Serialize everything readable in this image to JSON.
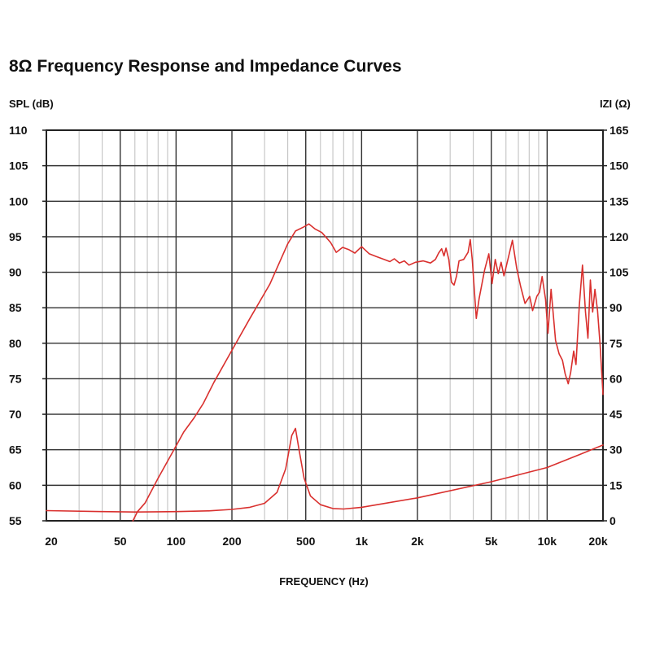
{
  "chart_data": {
    "type": "line",
    "title": "8Ω Frequency Response and Impedance Curves",
    "xlabel": "FREQUENCY (Hz)",
    "ylabel_left": "SPL (dB)",
    "ylabel_right": "IZI (Ω)",
    "xscale": "log",
    "xlim": [
      20,
      20000
    ],
    "ylim_left": [
      55,
      110
    ],
    "ylim_right": [
      0,
      165
    ],
    "grid": true,
    "x_ticks": [
      {
        "value": 20,
        "label": "20"
      },
      {
        "value": 50,
        "label": "50"
      },
      {
        "value": 100,
        "label": "100"
      },
      {
        "value": 200,
        "label": "200"
      },
      {
        "value": 500,
        "label": "500"
      },
      {
        "value": 1000,
        "label": "1k"
      },
      {
        "value": 2000,
        "label": "2k"
      },
      {
        "value": 5000,
        "label": "5k"
      },
      {
        "value": 10000,
        "label": "10k"
      },
      {
        "value": 20000,
        "label": "20k"
      }
    ],
    "y_ticks_left": [
      {
        "value": 110,
        "label": "110"
      },
      {
        "value": 105,
        "label": "105"
      },
      {
        "value": 100,
        "label": "100"
      },
      {
        "value": 95,
        "label": "95"
      },
      {
        "value": 90,
        "label": "90"
      },
      {
        "value": 85,
        "label": "85"
      },
      {
        "value": 80,
        "label": "80"
      },
      {
        "value": 75,
        "label": "75"
      },
      {
        "value": 70,
        "label": "70"
      },
      {
        "value": 65,
        "label": "65"
      },
      {
        "value": 60,
        "label": "60"
      },
      {
        "value": 55,
        "label": "55"
      }
    ],
    "y_ticks_right": [
      {
        "value": 165,
        "label": "165"
      },
      {
        "value": 150,
        "label": "150"
      },
      {
        "value": 135,
        "label": "135"
      },
      {
        "value": 120,
        "label": "120"
      },
      {
        "value": 105,
        "label": "105"
      },
      {
        "value": 90,
        "label": "90"
      },
      {
        "value": 75,
        "label": "75"
      },
      {
        "value": 60,
        "label": "60"
      },
      {
        "value": 45,
        "label": "45"
      },
      {
        "value": 30,
        "label": "30"
      },
      {
        "value": 15,
        "label": "15"
      },
      {
        "value": 0,
        "label": "0"
      }
    ],
    "series": [
      {
        "name": "SPL",
        "axis": "left",
        "color": "#d9302e",
        "points": [
          [
            58.5,
            55
          ],
          [
            62,
            56.3
          ],
          [
            68,
            57.5
          ],
          [
            80,
            61
          ],
          [
            95,
            64.5
          ],
          [
            110,
            67.5
          ],
          [
            125,
            69.5
          ],
          [
            140,
            71.5
          ],
          [
            160,
            74.5
          ],
          [
            200,
            79
          ],
          [
            250,
            83.5
          ],
          [
            320,
            88.3
          ],
          [
            400,
            94
          ],
          [
            440,
            95.8
          ],
          [
            490,
            96.4
          ],
          [
            520,
            96.8
          ],
          [
            560,
            96.1
          ],
          [
            610,
            95.6
          ],
          [
            680,
            94.2
          ],
          [
            730,
            92.8
          ],
          [
            790,
            93.5
          ],
          [
            850,
            93.2
          ],
          [
            920,
            92.7
          ],
          [
            1000,
            93.6
          ],
          [
            1100,
            92.6
          ],
          [
            1200,
            92.2
          ],
          [
            1320,
            91.8
          ],
          [
            1420,
            91.5
          ],
          [
            1500,
            91.9
          ],
          [
            1600,
            91.3
          ],
          [
            1700,
            91.6
          ],
          [
            1800,
            91.0
          ],
          [
            1950,
            91.4
          ],
          [
            2150,
            91.6
          ],
          [
            2350,
            91.3
          ],
          [
            2500,
            91.8
          ],
          [
            2600,
            92.7
          ],
          [
            2700,
            93.3
          ],
          [
            2780,
            92.3
          ],
          [
            2850,
            93.4
          ],
          [
            2950,
            91.8
          ],
          [
            3050,
            88.6
          ],
          [
            3150,
            88.2
          ],
          [
            3250,
            89.5
          ],
          [
            3350,
            91.6
          ],
          [
            3550,
            91.8
          ],
          [
            3750,
            92.8
          ],
          [
            3850,
            94.6
          ],
          [
            3950,
            91.7
          ],
          [
            4050,
            87.5
          ],
          [
            4150,
            83.5
          ],
          [
            4300,
            86.3
          ],
          [
            4600,
            90.3
          ],
          [
            4850,
            92.6
          ],
          [
            5050,
            88.4
          ],
          [
            5250,
            91.8
          ],
          [
            5450,
            89.8
          ],
          [
            5650,
            91.4
          ],
          [
            5850,
            89.5
          ],
          [
            6200,
            92.2
          ],
          [
            6500,
            94.5
          ],
          [
            6850,
            90.6
          ],
          [
            7200,
            88.0
          ],
          [
            7600,
            85.6
          ],
          [
            8050,
            86.6
          ],
          [
            8350,
            84.6
          ],
          [
            8800,
            86.6
          ],
          [
            9100,
            87.2
          ],
          [
            9400,
            89.4
          ],
          [
            9800,
            86.2
          ],
          [
            10100,
            81.4
          ],
          [
            10500,
            87.6
          ],
          [
            11100,
            80.4
          ],
          [
            11600,
            78.5
          ],
          [
            12100,
            77.6
          ],
          [
            12500,
            75.7
          ],
          [
            13000,
            74.3
          ],
          [
            13400,
            75.9
          ],
          [
            13900,
            78.9
          ],
          [
            14300,
            77.0
          ],
          [
            14900,
            85.3
          ],
          [
            15500,
            91.0
          ],
          [
            16100,
            84.4
          ],
          [
            16600,
            80.7
          ],
          [
            17100,
            88.9
          ],
          [
            17600,
            84.4
          ],
          [
            18100,
            87.6
          ],
          [
            18700,
            84.6
          ],
          [
            19300,
            79.7
          ],
          [
            20000,
            72.8
          ]
        ]
      },
      {
        "name": "Impedance",
        "axis": "right",
        "color": "#d9302e",
        "points": [
          [
            20,
            4.3
          ],
          [
            40,
            3.9
          ],
          [
            60,
            3.7
          ],
          [
            80,
            3.8
          ],
          [
            100,
            3.9
          ],
          [
            150,
            4.2
          ],
          [
            200,
            4.8
          ],
          [
            250,
            5.7
          ],
          [
            300,
            7.4
          ],
          [
            350,
            12.0
          ],
          [
            390,
            22.0
          ],
          [
            420,
            36.0
          ],
          [
            440,
            39.0
          ],
          [
            460,
            30.0
          ],
          [
            490,
            18.0
          ],
          [
            530,
            10.5
          ],
          [
            600,
            6.8
          ],
          [
            700,
            5.2
          ],
          [
            800,
            5.0
          ],
          [
            1000,
            5.7
          ],
          [
            2000,
            9.7
          ],
          [
            5000,
            16.5
          ],
          [
            10000,
            22.5
          ],
          [
            15000,
            28.0
          ],
          [
            20000,
            32.0
          ]
        ]
      }
    ]
  }
}
